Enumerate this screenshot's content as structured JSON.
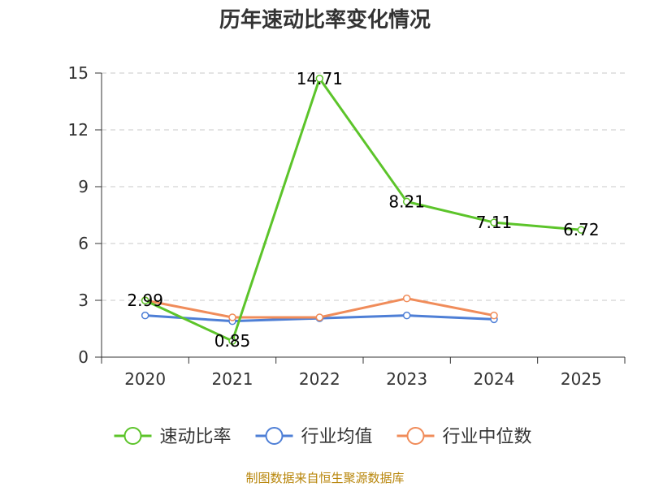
{
  "chart_data": {
    "type": "line",
    "title": "历年速动比率变化情况",
    "categories": [
      "2020",
      "2021",
      "2022",
      "2023",
      "2024",
      "2025"
    ],
    "ylim": [
      0,
      15
    ],
    "yticks": [
      0,
      3,
      6,
      9,
      12,
      15
    ],
    "grid": true,
    "legend_position": "bottom",
    "series": [
      {
        "name": "速动比率",
        "color": "#5cc42a",
        "values": [
          2.99,
          0.85,
          14.71,
          8.21,
          7.11,
          6.72
        ],
        "labels": [
          "2.99",
          "0.85",
          "14.71",
          "8.21",
          "7.11",
          "6.72"
        ]
      },
      {
        "name": "行业均值",
        "color": "#4e7fd6",
        "values": [
          2.2,
          1.9,
          2.05,
          2.2,
          2.0,
          null
        ]
      },
      {
        "name": "行业中位数",
        "color": "#f08c5a",
        "values": [
          3.0,
          2.1,
          2.1,
          3.1,
          2.2,
          null
        ]
      }
    ],
    "source": "制图数据来自恒生聚源数据库"
  }
}
